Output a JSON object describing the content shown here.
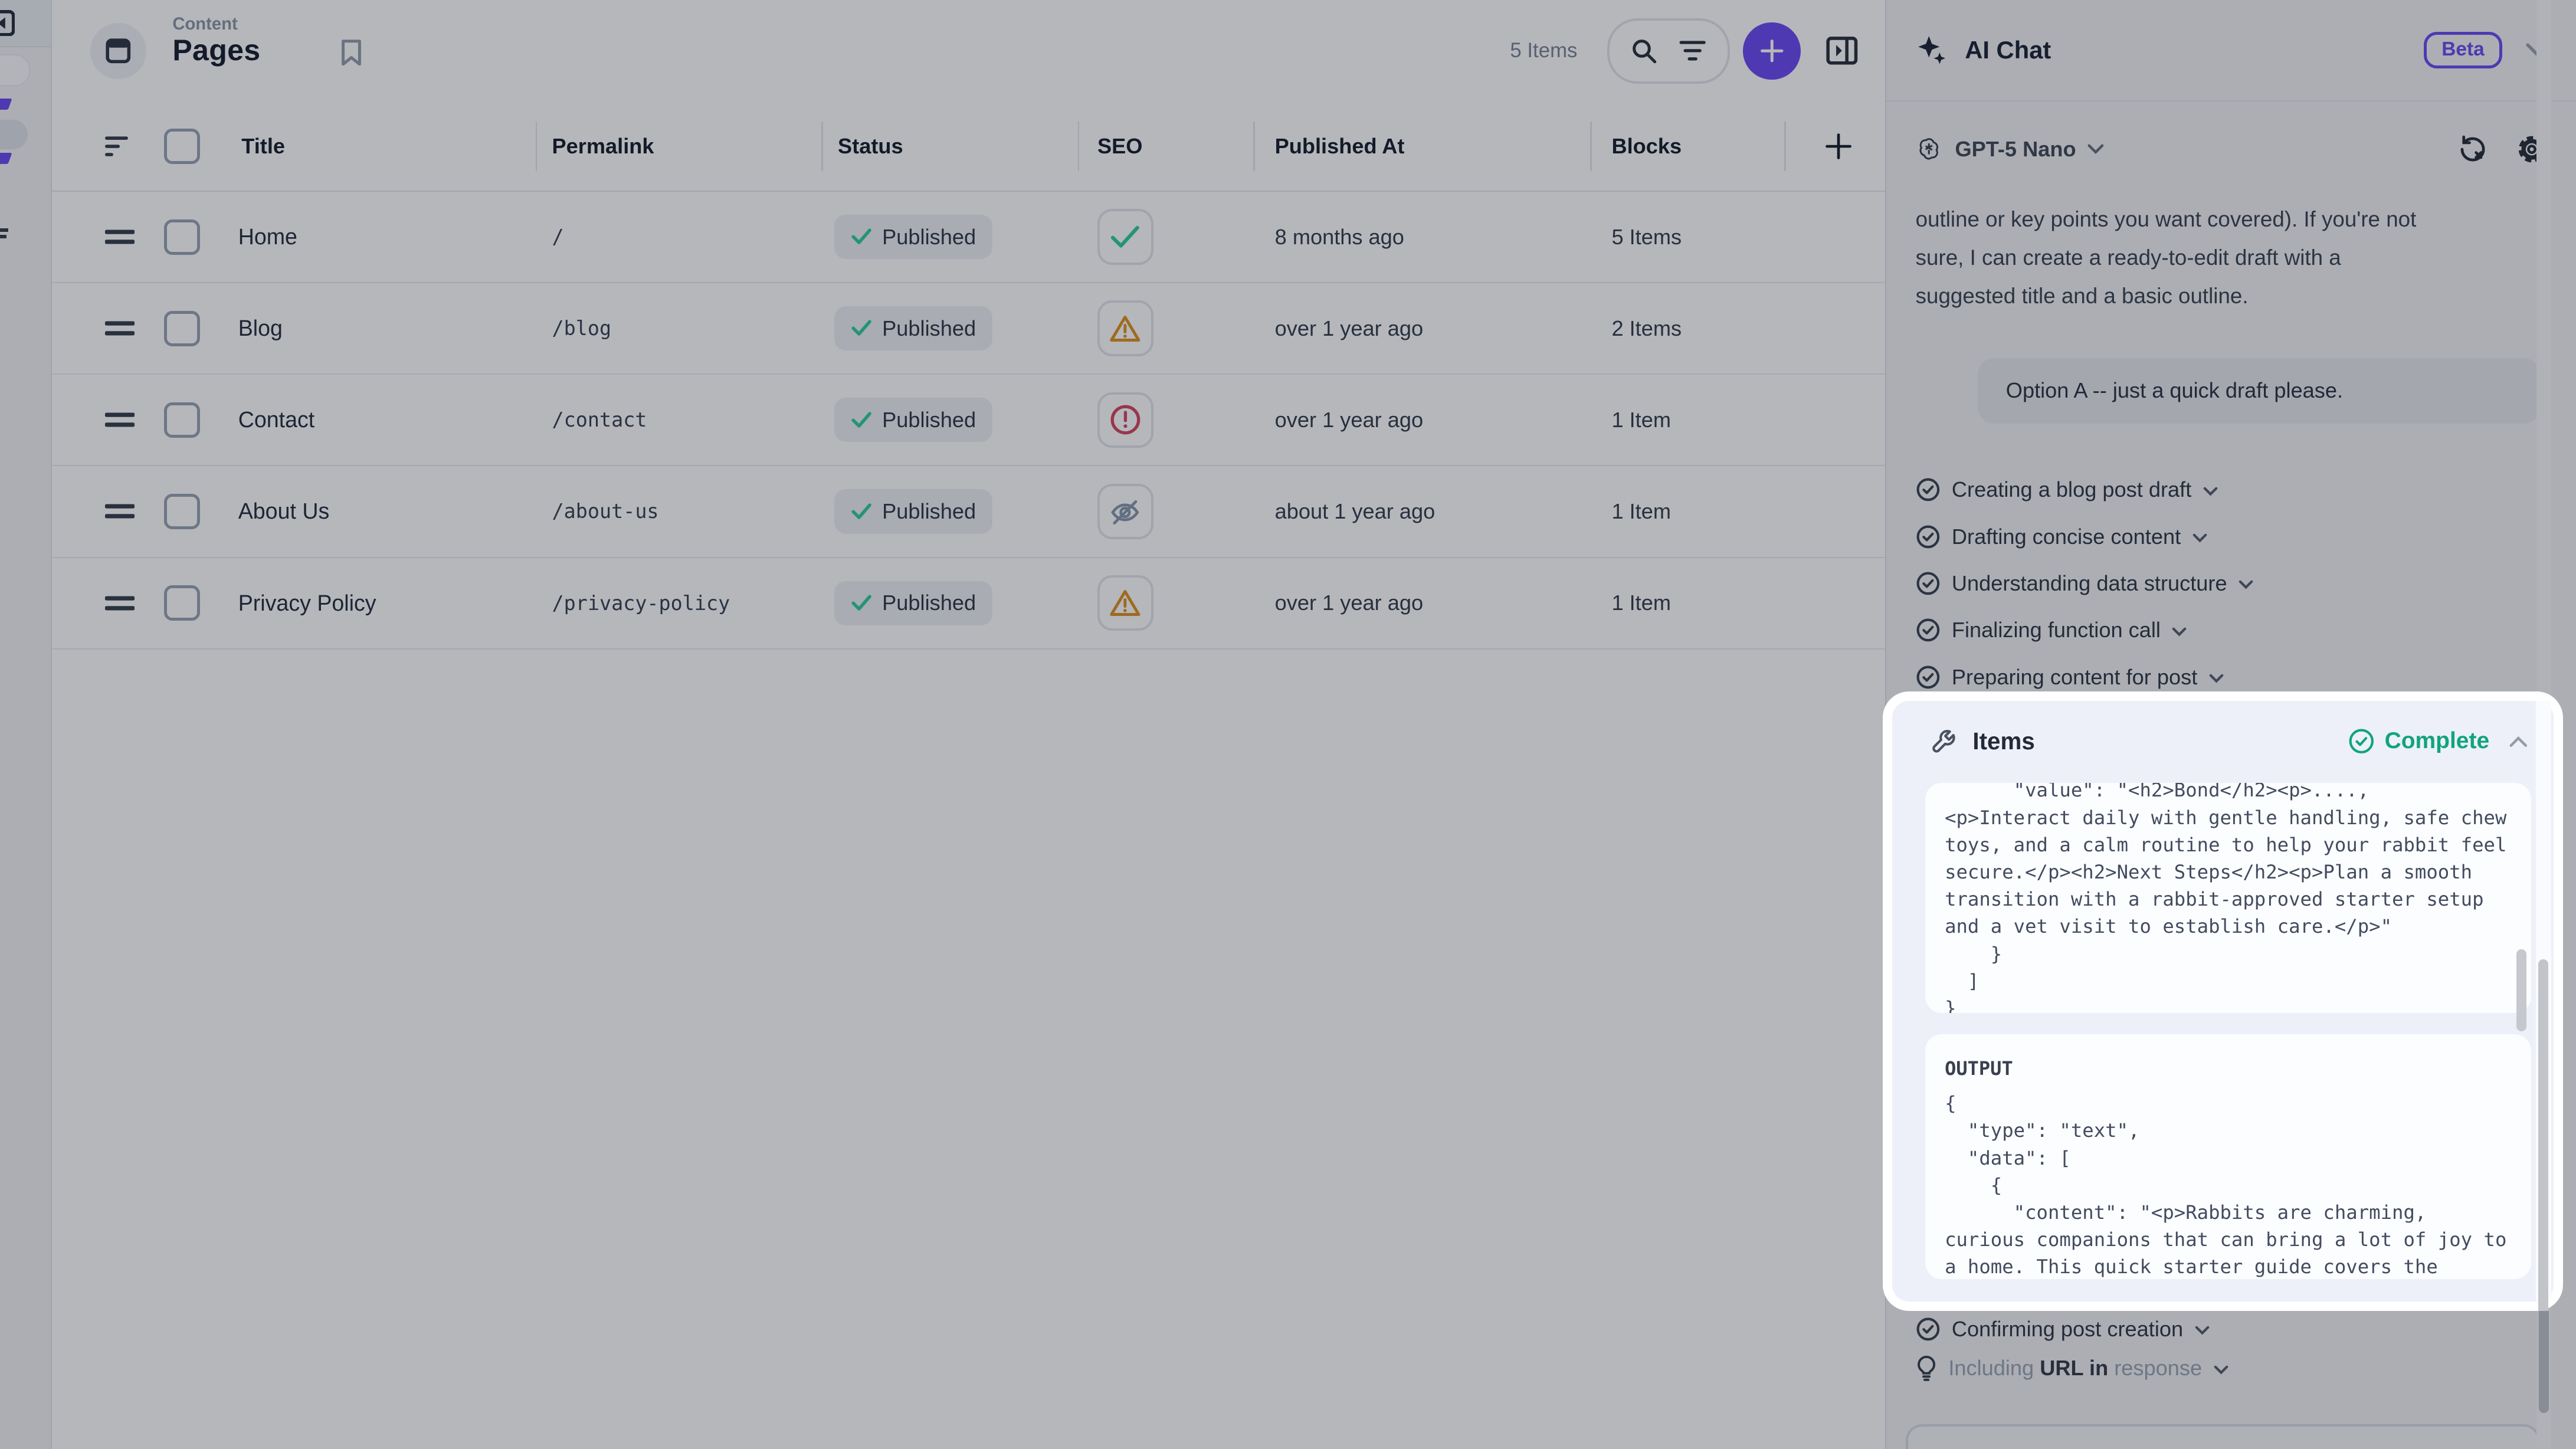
{
  "sidebar": {
    "note": "collapsed navigation rail, mostly offscreen"
  },
  "header": {
    "kicker": "Content",
    "title": "Pages",
    "count": "5 Items"
  },
  "table": {
    "columns": {
      "title": "Title",
      "permalink": "Permalink",
      "status": "Status",
      "seo": "SEO",
      "published_at": "Published At",
      "blocks": "Blocks"
    },
    "rows": [
      {
        "title": "Home",
        "permalink": "/",
        "status": "Published",
        "seo": "check",
        "published_at": "8 months ago",
        "blocks": "5 Items"
      },
      {
        "title": "Blog",
        "permalink": "/blog",
        "status": "Published",
        "seo": "warning",
        "published_at": "over 1 year ago",
        "blocks": "2 Items"
      },
      {
        "title": "Contact",
        "permalink": "/contact",
        "status": "Published",
        "seo": "error",
        "published_at": "over 1 year ago",
        "blocks": "1 Item"
      },
      {
        "title": "About Us",
        "permalink": "/about-us",
        "status": "Published",
        "seo": "hidden",
        "published_at": "about 1 year ago",
        "blocks": "1 Item"
      },
      {
        "title": "Privacy Policy",
        "permalink": "/privacy-policy",
        "status": "Published",
        "seo": "warning",
        "published_at": "over 1 year ago",
        "blocks": "1 Item"
      }
    ]
  },
  "chat": {
    "title": "AI Chat",
    "badge": "Beta",
    "model": "GPT-5 Nano",
    "assistant_text": "outline or key points you want covered). If you're not\nsure, I can create a ready-to-edit draft with a\nsuggested title and a basic outline.",
    "user_message": "Option A -- just a quick draft please.",
    "steps": [
      "Creating a blog post draft",
      "Drafting concise content",
      "Understanding data structure",
      "Finalizing function call",
      "Preparing content for post"
    ],
    "tool_card": {
      "title": "Items",
      "status": "Complete",
      "input_code": "      \"value\": \"<h2>Bond</h2><p>....,\n<p>Interact daily with gentle handling, safe chew\ntoys, and a calm routine to help your rabbit feel\nsecure.</p><h2>Next Steps</h2><p>Plan a smooth\ntransition with a rabbit-approved starter setup\nand a vet visit to establish care.</p>\"\n    }\n  ]\n}",
      "output_label": "OUTPUT",
      "output_code": "{\n  \"type\": \"text\",\n  \"data\": [\n    {\n      \"content\": \"<p>Rabbits are charming,\ncurious companions that can bring a lot of joy to\na home. This quick starter guide covers the"
    },
    "post_step": "Confirming post creation",
    "hint_step": {
      "prefix": "Including ",
      "strong": "URL in ",
      "suffix": "response"
    }
  },
  "colors": {
    "accent": "#6f4ef2",
    "green": "#33ce9e",
    "complete_green": "#11a37f",
    "warning": "#df9526",
    "error": "#d64a63",
    "hidden_icon": "#8b9aae"
  }
}
